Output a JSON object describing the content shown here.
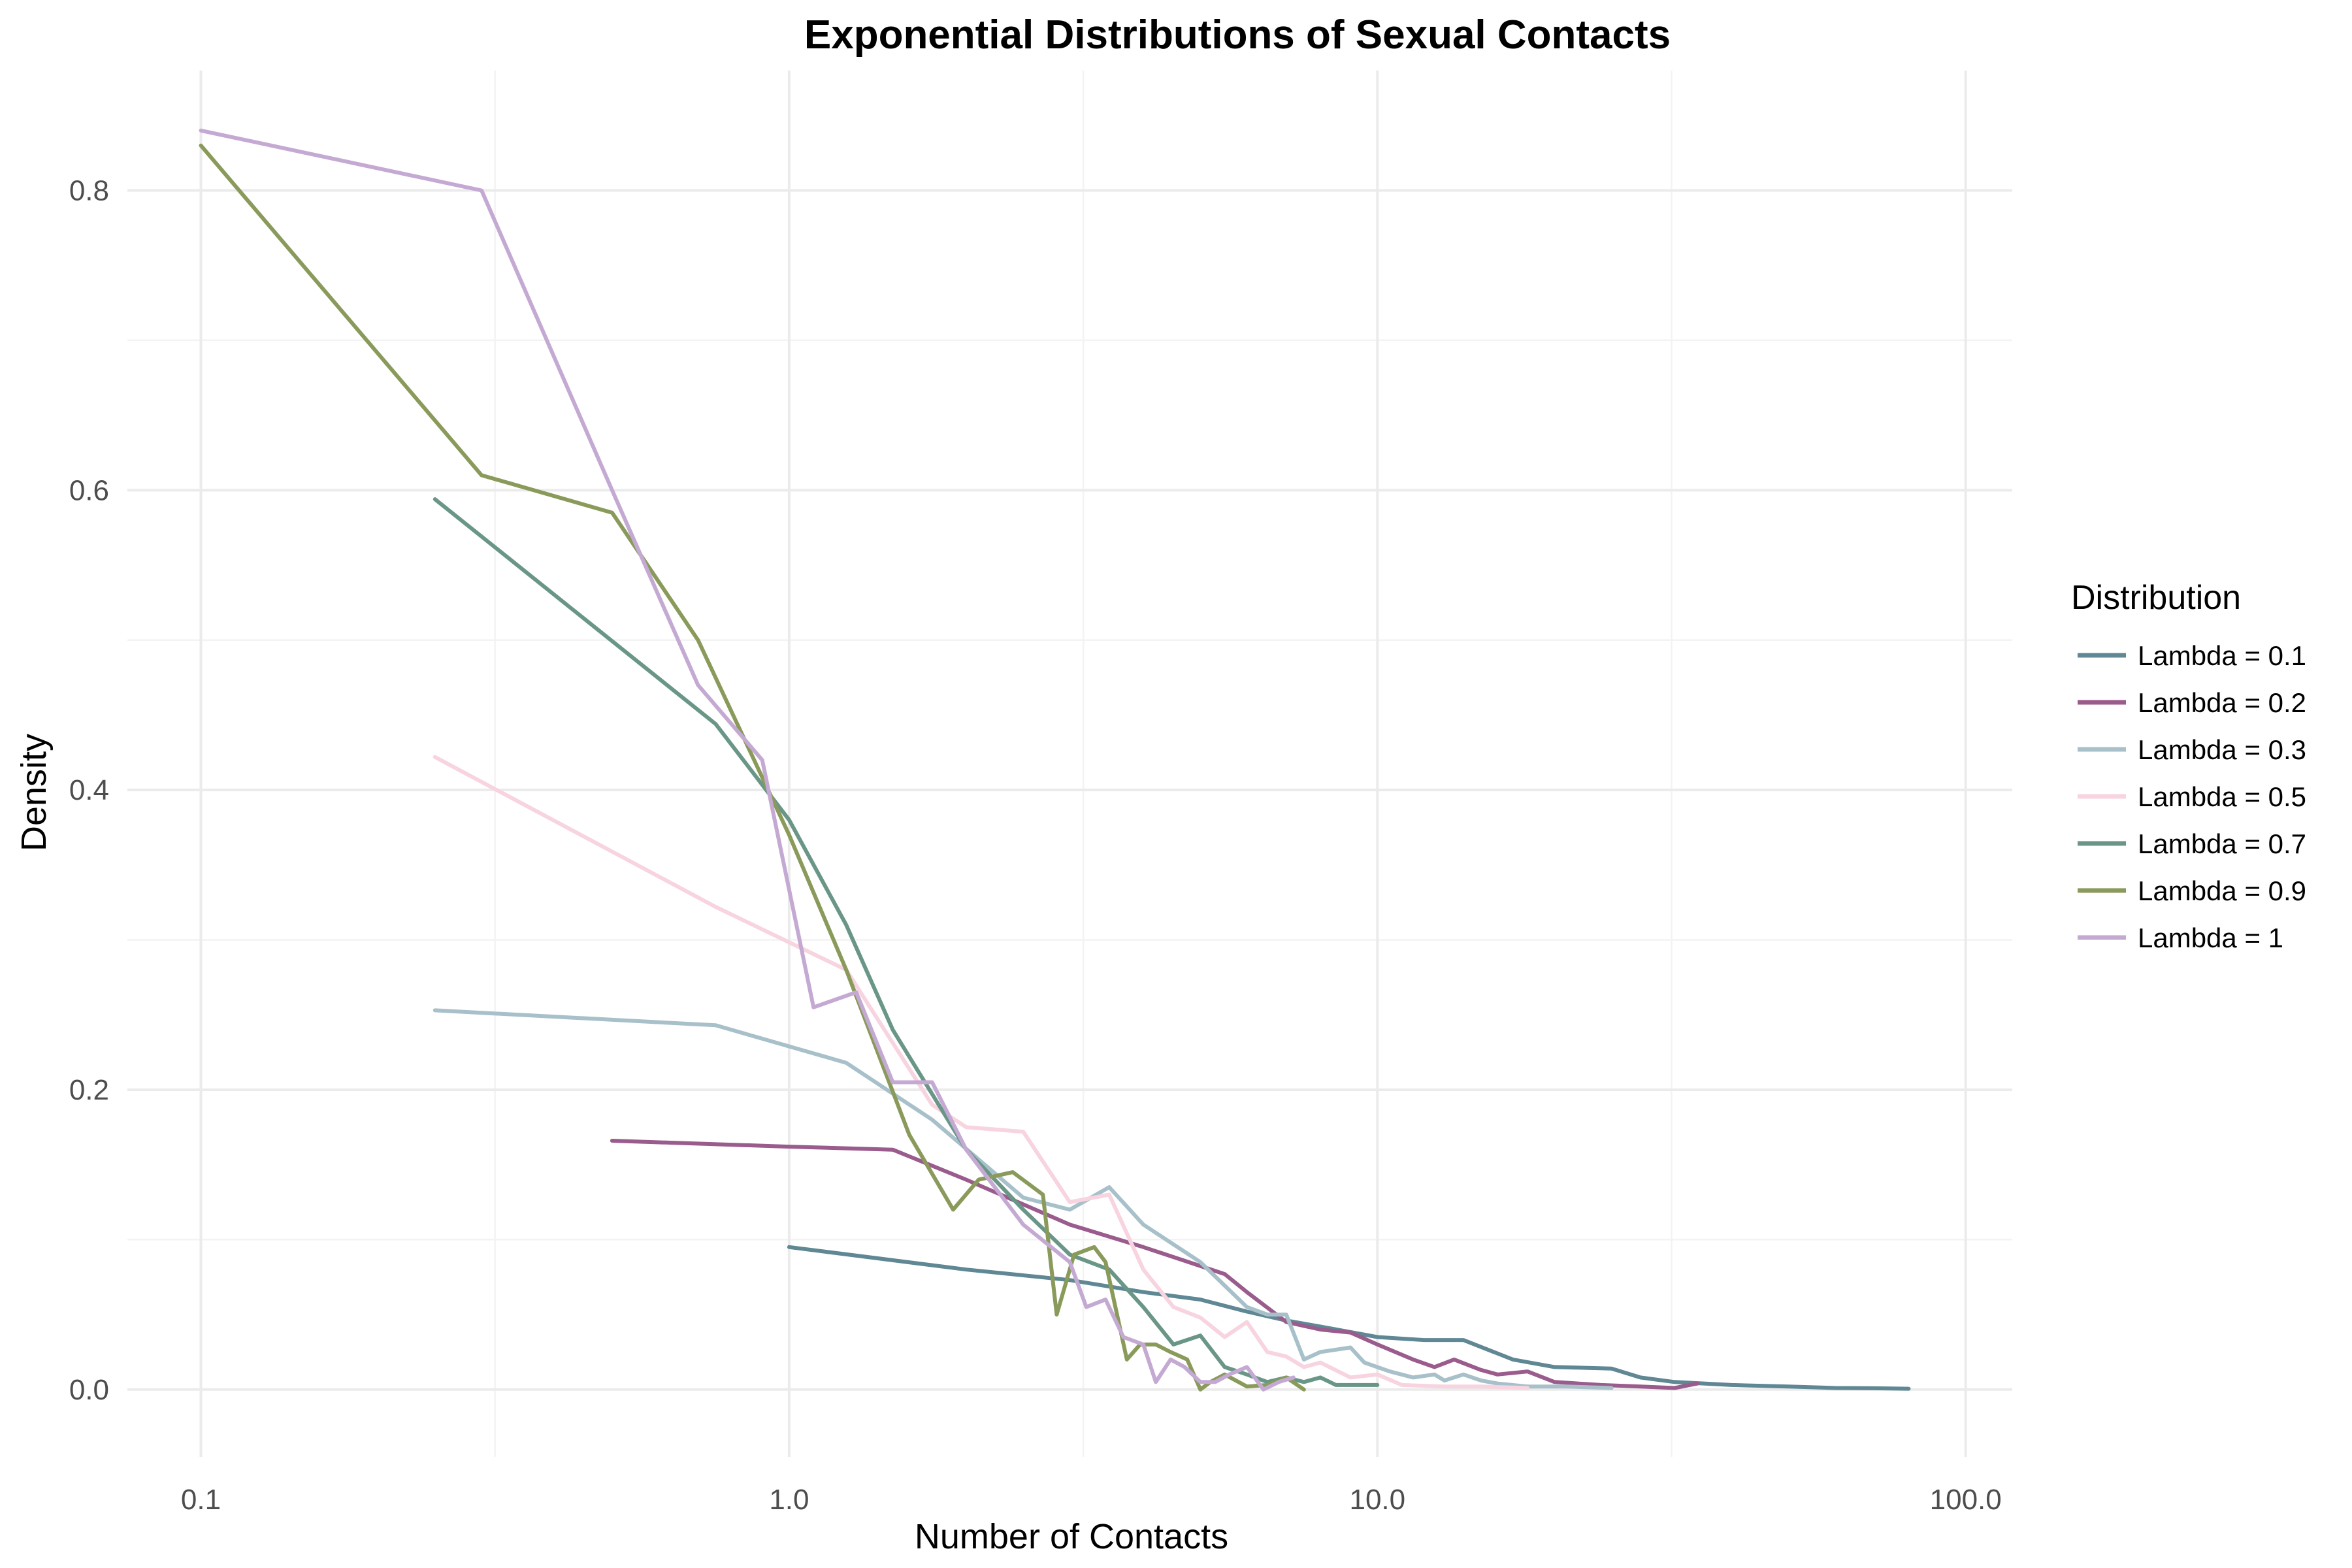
{
  "chart_data": {
    "type": "line",
    "title": "Exponential Distributions of Sexual Contacts",
    "xlabel": "Number of Contacts",
    "ylabel": "Density",
    "x_scale": "log10",
    "xlim": [
      0.075,
      120
    ],
    "ylim": [
      -0.045,
      0.88
    ],
    "x_ticks": [
      0.1,
      1.0,
      10.0,
      100.0
    ],
    "x_tick_labels": [
      "0.1",
      "1.0",
      "10.0",
      "100.0"
    ],
    "y_ticks": [
      0.0,
      0.2,
      0.4,
      0.6,
      0.8
    ],
    "y_tick_labels": [
      "0.0",
      "0.2",
      "0.4",
      "0.6",
      "0.8"
    ],
    "grid": true,
    "legend": {
      "title": "Distribution",
      "position": "right"
    },
    "series": [
      {
        "name": "Lambda = 0.1",
        "color": "#5f8794",
        "x": [
          1.0,
          2.0,
          3.0,
          4.0,
          5.0,
          6.0,
          7.0,
          8.0,
          10.0,
          12.0,
          14.0,
          17.0,
          20.0,
          25.0,
          28.0,
          32.0,
          40.0,
          50.0,
          60.0,
          70.0,
          80.0
        ],
        "y": [
          0.095,
          0.08,
          0.073,
          0.065,
          0.06,
          0.052,
          0.046,
          0.042,
          0.035,
          0.033,
          0.033,
          0.02,
          0.015,
          0.014,
          0.008,
          0.005,
          0.003,
          0.002,
          0.001,
          0.0008,
          0.0005
        ]
      },
      {
        "name": "Lambda = 0.2",
        "color": "#9a5b8d",
        "x": [
          0.5,
          1.0,
          1.5,
          2.0,
          3.0,
          4.0,
          5.5,
          6.0,
          7.0,
          8.0,
          9.0,
          10.0,
          11.5,
          12.5,
          13.5,
          15.0,
          16.0,
          18.0,
          20.0,
          24.0,
          28.0,
          32.0,
          35.0
        ],
        "y": [
          0.166,
          0.162,
          0.16,
          0.14,
          0.11,
          0.095,
          0.077,
          0.065,
          0.045,
          0.04,
          0.038,
          0.03,
          0.02,
          0.015,
          0.02,
          0.013,
          0.01,
          0.012,
          0.005,
          0.003,
          0.002,
          0.001,
          0.004
        ]
      },
      {
        "name": "Lambda = 0.3",
        "color": "#a7c0ca",
        "x": [
          0.25,
          0.75,
          1.25,
          1.75,
          2.5,
          3.0,
          3.5,
          4.0,
          5.0,
          6.0,
          6.5,
          7.0,
          7.5,
          8.0,
          9.0,
          9.5,
          10.5,
          11.5,
          12.5,
          13.0,
          14.0,
          15.0,
          16.0,
          18.0,
          21.0,
          25.0
        ],
        "y": [
          0.253,
          0.243,
          0.218,
          0.18,
          0.128,
          0.12,
          0.135,
          0.11,
          0.085,
          0.055,
          0.05,
          0.05,
          0.02,
          0.025,
          0.028,
          0.018,
          0.012,
          0.008,
          0.01,
          0.006,
          0.01,
          0.006,
          0.004,
          0.002,
          0.002,
          0.001
        ]
      },
      {
        "name": "Lambda = 0.5",
        "color": "#f7d4df",
        "x": [
          0.25,
          0.75,
          1.25,
          1.75,
          2.0,
          2.5,
          3.0,
          3.5,
          4.0,
          4.5,
          5.0,
          5.5,
          6.0,
          6.5,
          7.0,
          7.5,
          8.0,
          9.0,
          10.0,
          11.0,
          13.0,
          15.0,
          18.0
        ],
        "y": [
          0.422,
          0.322,
          0.28,
          0.19,
          0.175,
          0.172,
          0.125,
          0.13,
          0.08,
          0.055,
          0.048,
          0.035,
          0.045,
          0.025,
          0.022,
          0.015,
          0.018,
          0.008,
          0.01,
          0.003,
          0.002,
          0.002,
          0.001
        ]
      },
      {
        "name": "Lambda = 0.7",
        "color": "#6a9688",
        "x": [
          0.25,
          0.75,
          1.0,
          1.25,
          1.5,
          2.0,
          2.5,
          3.0,
          3.5,
          4.0,
          4.5,
          5.0,
          5.5,
          6.0,
          6.5,
          7.0,
          7.5,
          8.0,
          8.5,
          9.5,
          10.0
        ],
        "y": [
          0.594,
          0.444,
          0.38,
          0.31,
          0.24,
          0.16,
          0.12,
          0.09,
          0.08,
          0.055,
          0.03,
          0.036,
          0.015,
          0.01,
          0.005,
          0.008,
          0.005,
          0.008,
          0.003,
          0.003,
          0.003
        ]
      },
      {
        "name": "Lambda = 0.9",
        "color": "#8a9a5b",
        "x": [
          0.1,
          0.3,
          0.5,
          0.7,
          1.0,
          1.25,
          1.6,
          1.9,
          2.1,
          2.4,
          2.7,
          2.85,
          3.05,
          3.3,
          3.45,
          3.75,
          3.95,
          4.2,
          4.45,
          4.75,
          5.0,
          5.2,
          5.5,
          6.0,
          6.5,
          7.0,
          7.5
        ],
        "y": [
          0.83,
          0.61,
          0.585,
          0.5,
          0.37,
          0.28,
          0.17,
          0.12,
          0.14,
          0.145,
          0.13,
          0.05,
          0.09,
          0.095,
          0.085,
          0.02,
          0.03,
          0.03,
          0.025,
          0.02,
          0.0,
          0.005,
          0.01,
          0.002,
          0.003,
          0.008,
          0.0
        ]
      },
      {
        "name": "Lambda = 1",
        "color": "#c4aad3",
        "x": [
          0.1,
          0.3,
          0.5,
          0.7,
          0.9,
          1.1,
          1.3,
          1.5,
          1.75,
          2.0,
          2.5,
          3.0,
          3.2,
          3.45,
          3.7,
          4.0,
          4.2,
          4.45,
          4.7,
          5.0,
          5.3,
          5.6,
          6.0,
          6.4,
          6.8,
          7.2
        ],
        "y": [
          0.84,
          0.8,
          0.6,
          0.47,
          0.42,
          0.255,
          0.265,
          0.205,
          0.205,
          0.16,
          0.11,
          0.085,
          0.055,
          0.06,
          0.035,
          0.03,
          0.005,
          0.02,
          0.015,
          0.005,
          0.005,
          0.01,
          0.015,
          0.0,
          0.005,
          0.008
        ]
      }
    ]
  }
}
